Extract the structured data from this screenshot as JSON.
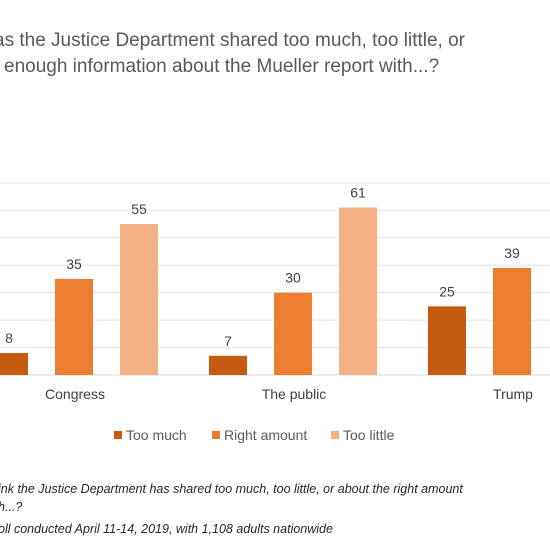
{
  "chart_data": {
    "type": "bar",
    "title": "as the Justice Department shared too much, too little, or enough information about the Mueller report with...?",
    "title_lines": [
      "as the Justice Department shared too much, too little, or",
      " enough information about the Mueller report with...?"
    ],
    "categories": [
      "Congress",
      "The public",
      "Trump"
    ],
    "series": [
      {
        "name": "Too much",
        "values": [
          8,
          7,
          25
        ],
        "color": "#c55a11"
      },
      {
        "name": "Right amount",
        "values": [
          35,
          30,
          39
        ],
        "color": "#ed7d31"
      },
      {
        "name": "Too little",
        "values": [
          55,
          61,
          null
        ],
        "color": "#f4b183"
      }
    ],
    "data_labels": [
      [
        "8",
        "7",
        "25"
      ],
      [
        "35",
        "30",
        "39"
      ],
      [
        "55",
        "61",
        ""
      ]
    ],
    "legend_position": "bottom",
    "grid": true,
    "ylim": [
      0,
      70
    ]
  },
  "footnotes": [
    "ink the Justice Department has shared too much, too little, or about the right amount",
    "h...?",
    "oll conducted April 11-14, 2019, with 1,108 adults nationwide"
  ]
}
